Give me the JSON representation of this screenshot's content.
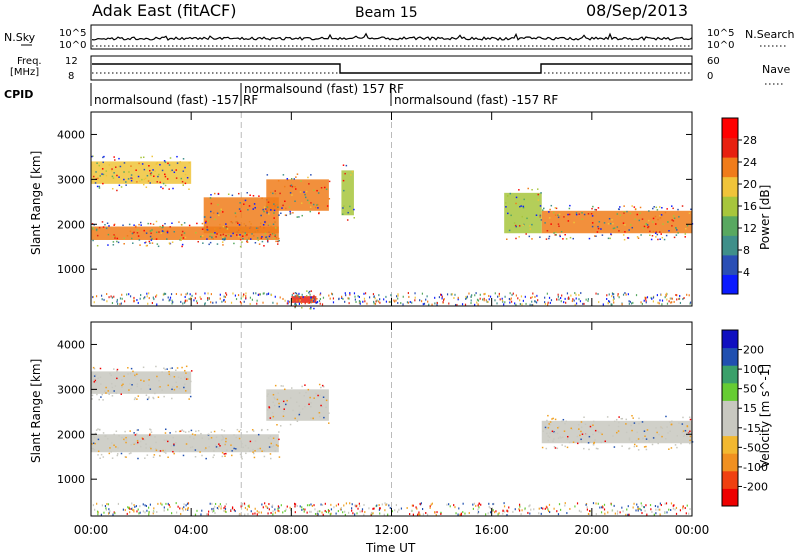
{
  "header": {
    "title": "Adak East (fitACF)",
    "beam": "Beam 15",
    "date": "08/Sep/2013"
  },
  "strips": {
    "nsky_label": "N.Sky",
    "nsearch_label": "N.Search",
    "noise_ticks": [
      "10^5",
      "10^0"
    ],
    "freq_label_1": "Freq.",
    "freq_label_2": "[MHz]",
    "freq_ticks": [
      "12",
      "8"
    ],
    "nave_label": "Nave",
    "nave_ticks": [
      "60",
      "0"
    ],
    "cpid_label": "CPID",
    "cpid_segments": [
      {
        "label": "normalsound (fast) -157 RF"
      },
      {
        "label": "normalsound (fast) 157 RF"
      },
      {
        "label": "normalsound (fast) -157 RF"
      }
    ]
  },
  "colors": {
    "power_scale": [
      "#0b1bff",
      "#2a4fb5",
      "#3f8f8a",
      "#58a860",
      "#a7c63c",
      "#f0c43a",
      "#f07c1a",
      "#e82010",
      "#ff0000"
    ],
    "velocity_scale": [
      "#ee0000",
      "#f04010",
      "#f09020",
      "#f2b830",
      "#c8c8c0",
      "#c8c8c0",
      "#66cc33",
      "#3aa06a",
      "#2050b0",
      "#1010c0"
    ]
  },
  "chart_data": [
    {
      "type": "heatmap",
      "name": "power-panel",
      "xlabel": "Time UT",
      "ylabel": "Slant Range [km]",
      "x_ticks": [
        "00:00",
        "04:00",
        "08:00",
        "12:00",
        "16:00",
        "20:00",
        "00:00"
      ],
      "y_ticks": [
        "1000",
        "2000",
        "3000",
        "4000"
      ],
      "xlim_hours": [
        0,
        24
      ],
      "ylim_km": [
        180,
        4500
      ],
      "colorbar": {
        "label": "Power [dB]",
        "ticks": [
          "4",
          "8",
          "12",
          "16",
          "20",
          "24",
          "28"
        ],
        "range": [
          0,
          30
        ]
      },
      "bands": [
        {
          "t0": 0.0,
          "t1": 7.5,
          "r0": 1650,
          "r1": 1950,
          "level": 22
        },
        {
          "t0": 0.0,
          "t1": 4.0,
          "r0": 2900,
          "r1": 3400,
          "level": 18
        },
        {
          "t0": 4.5,
          "t1": 7.5,
          "r0": 1800,
          "r1": 2600,
          "level": 24
        },
        {
          "t0": 7.0,
          "t1": 9.5,
          "r0": 2300,
          "r1": 3000,
          "level": 22
        },
        {
          "t0": 8.0,
          "t1": 9.0,
          "r0": 250,
          "r1": 400,
          "level": 26
        },
        {
          "t0": 10.0,
          "t1": 10.5,
          "r0": 2200,
          "r1": 3200,
          "level": 16
        },
        {
          "t0": 16.5,
          "t1": 18.0,
          "r0": 1800,
          "r1": 2700,
          "level": 14
        },
        {
          "t0": 18.0,
          "t1": 24.0,
          "r0": 1800,
          "r1": 2300,
          "level": 22
        }
      ]
    },
    {
      "type": "heatmap",
      "name": "velocity-panel",
      "xlabel": "Time UT",
      "ylabel": "Slant Range [km]",
      "x_ticks": [
        "00:00",
        "04:00",
        "08:00",
        "12:00",
        "16:00",
        "20:00",
        "00:00"
      ],
      "y_ticks": [
        "1000",
        "2000",
        "3000",
        "4000"
      ],
      "xlim_hours": [
        0,
        24
      ],
      "ylim_km": [
        180,
        4500
      ],
      "colorbar": {
        "label": "Velocity [m s^-1]",
        "ticks": [
          "200",
          "100",
          "50",
          "15",
          "-15",
          "-50",
          "-100",
          "-200"
        ],
        "range": [
          -250,
          250
        ]
      },
      "bands": [
        {
          "t0": 0.0,
          "t1": 7.5,
          "r0": 1600,
          "r1": 2000,
          "level": 0
        },
        {
          "t0": 0.0,
          "t1": 4.0,
          "r0": 2900,
          "r1": 3400,
          "level": 0
        },
        {
          "t0": 7.0,
          "t1": 9.5,
          "r0": 2300,
          "r1": 3000,
          "level": 0
        },
        {
          "t0": 18.0,
          "t1": 24.0,
          "r0": 1800,
          "r1": 2300,
          "level": 0
        }
      ]
    }
  ]
}
